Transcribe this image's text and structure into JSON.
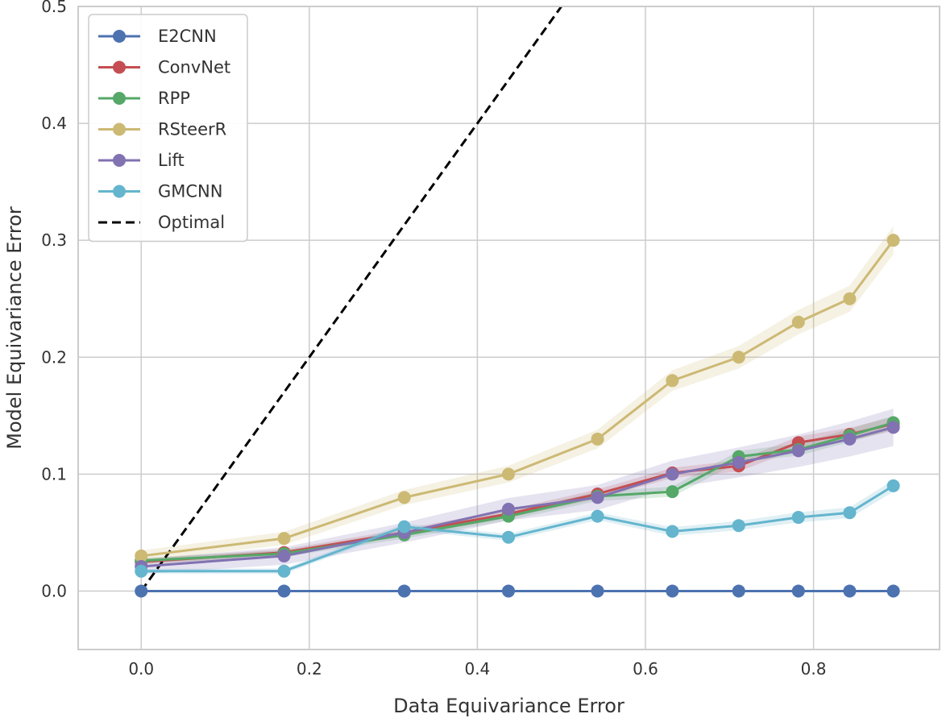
{
  "chart_data": {
    "type": "line",
    "title": "",
    "xlabel": "Data Equivariance Error",
    "ylabel": "Model Equivariance Error",
    "xlim": [
      -0.075,
      0.95
    ],
    "ylim": [
      -0.05,
      0.5
    ],
    "xticks": [
      0.0,
      0.2,
      0.4,
      0.6,
      0.8
    ],
    "xtick_labels": [
      "0.0",
      "0.2",
      "0.4",
      "0.6",
      "0.8"
    ],
    "yticks": [
      0.0,
      0.1,
      0.2,
      0.3,
      0.4,
      0.5
    ],
    "ytick_labels": [
      "0.0",
      "0.1",
      "0.2",
      "0.3",
      "0.4",
      "0.5"
    ],
    "grid": true,
    "legend_position": "top-left",
    "x": [
      0.0,
      0.17,
      0.313,
      0.437,
      0.543,
      0.632,
      0.711,
      0.782,
      0.843,
      0.895
    ],
    "series": [
      {
        "name": "E2CNN",
        "color": "#4c72b0",
        "values": [
          0.0,
          0.0,
          0.0,
          0.0,
          0.0,
          0.0,
          0.0,
          0.0,
          0.0,
          0.0
        ],
        "band": 0.0
      },
      {
        "name": "ConvNet",
        "color": "#c44e52",
        "values": [
          0.025,
          0.033,
          0.05,
          0.066,
          0.083,
          0.101,
          0.107,
          0.127,
          0.134,
          0.143
        ],
        "band": 0.006
      },
      {
        "name": "RPP",
        "color": "#55a868",
        "values": [
          0.026,
          0.032,
          0.048,
          0.064,
          0.081,
          0.085,
          0.115,
          0.121,
          0.133,
          0.144
        ],
        "band": 0.006
      },
      {
        "name": "RSteerR",
        "color": "#ccb974",
        "values": [
          0.03,
          0.045,
          0.08,
          0.1,
          0.13,
          0.18,
          0.2,
          0.23,
          0.25,
          0.3
        ],
        "band": 0.012
      },
      {
        "name": "Lift",
        "color": "#8172b2",
        "values": [
          0.021,
          0.03,
          0.05,
          0.07,
          0.08,
          0.1,
          0.11,
          0.12,
          0.13,
          0.14
        ],
        "band": 0.016
      },
      {
        "name": "GMCNN",
        "color": "#64b5cd",
        "values": [
          0.017,
          0.017,
          0.055,
          0.046,
          0.064,
          0.051,
          0.056,
          0.063,
          0.067,
          0.09
        ],
        "band": 0.005
      }
    ],
    "reference_line": {
      "name": "Optimal",
      "color": "#000000",
      "style": "dashed",
      "x": [
        0.0,
        0.5
      ],
      "y": [
        0.0,
        0.5
      ]
    }
  }
}
